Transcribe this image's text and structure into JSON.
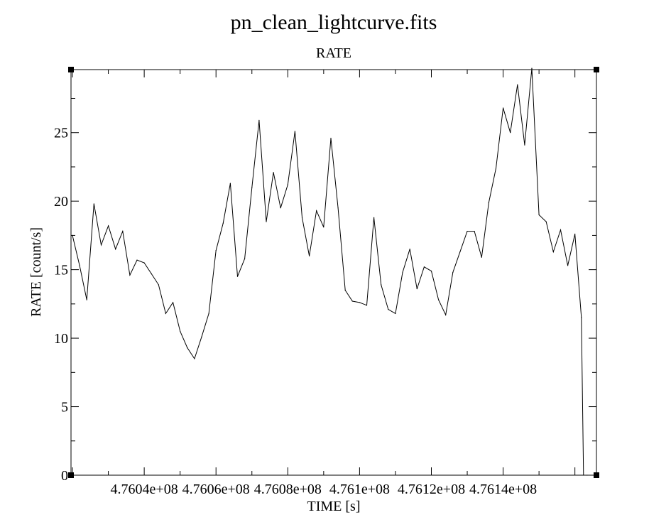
{
  "chart_data": {
    "type": "line",
    "title": "pn_clean_lightcurve.fits",
    "subtitle": "RATE",
    "xlabel": "TIME [s]",
    "ylabel": "RATE [count/s]",
    "xlim": [
      476019600,
      476166000
    ],
    "ylim": [
      0,
      29.6
    ],
    "grid": false,
    "x_tick_values": [
      476040000,
      476060000,
      476080000,
      476100000,
      476120000,
      476140000
    ],
    "x_tick_labels": [
      "4.7604e+08",
      "4.7606e+08",
      "4.7608e+08",
      "4.761e+08",
      "4.7612e+08",
      "4.7614e+08"
    ],
    "y_tick_values": [
      0,
      5,
      10,
      15,
      20,
      25
    ],
    "y_tick_labels": [
      "0",
      "5",
      "10",
      "15",
      "20",
      "25"
    ],
    "series": [
      {
        "name": "RATE",
        "color": "#000000",
        "x": [
          476020000,
          476022000,
          476024000,
          476026000,
          476028000,
          476030000,
          476032000,
          476034000,
          476036000,
          476038000,
          476040000,
          476042000,
          476044000,
          476046000,
          476048000,
          476050000,
          476052000,
          476054000,
          476056000,
          476058000,
          476060000,
          476062000,
          476064000,
          476066000,
          476068000,
          476070000,
          476072000,
          476074000,
          476076000,
          476078000,
          476080000,
          476082000,
          476084000,
          476086000,
          476088000,
          476090000,
          476092000,
          476094000,
          476096000,
          476098000,
          476100000,
          476102000,
          476104000,
          476106000,
          476108000,
          476110000,
          476112000,
          476114000,
          476116000,
          476118000,
          476120000,
          476122000,
          476124000,
          476126000,
          476128000,
          476130000,
          476132000,
          476134000,
          476136000,
          476138000,
          476140000,
          476142000,
          476144000,
          476146000,
          476148000,
          476150000,
          476152000,
          476154000,
          476156000,
          476158000,
          476160000,
          476161800,
          476162400,
          476163400
        ],
        "y": [
          17.5,
          15.3,
          12.8,
          19.8,
          16.8,
          18.2,
          16.5,
          17.8,
          14.6,
          15.7,
          15.5,
          14.7,
          13.9,
          11.8,
          12.6,
          10.5,
          9.3,
          8.5,
          10.1,
          11.8,
          16.4,
          18.4,
          21.3,
          14.5,
          15.8,
          21.0,
          25.9,
          18.5,
          22.1,
          19.5,
          21.2,
          25.1,
          18.8,
          16.0,
          19.3,
          18.1,
          24.6,
          19.5,
          13.5,
          12.7,
          12.6,
          12.4,
          18.8,
          13.9,
          12.1,
          11.8,
          14.8,
          16.5,
          13.6,
          15.2,
          14.9,
          12.8,
          11.7,
          14.8,
          16.3,
          17.8,
          17.8,
          15.9,
          19.9,
          22.4,
          26.8,
          25.0,
          28.5,
          24.1,
          29.7,
          19.0,
          18.5,
          16.3,
          17.9,
          15.3,
          17.6,
          11.5,
          0.0,
          0.0
        ]
      }
    ]
  }
}
